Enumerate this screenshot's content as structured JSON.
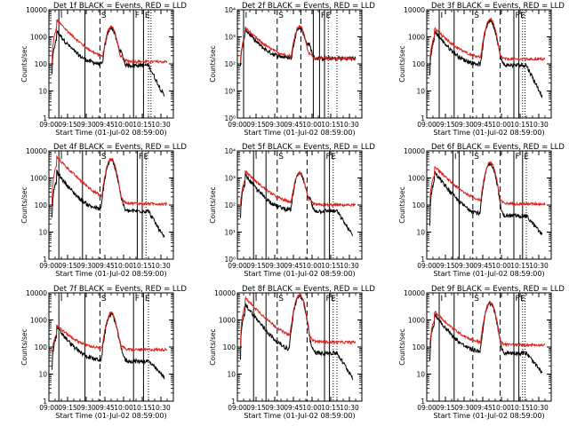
{
  "chart_data": {
    "type": "line",
    "layout": "3x3 grid",
    "colors": {
      "events": "#000000",
      "lld": "#e0201a",
      "marker_line": "#000000",
      "background": "#ffffff"
    },
    "x_axis": {
      "label": "Start Time (01-Jul-02 08:59:00)",
      "tick_labels": [
        "09:00",
        "09:15",
        "09:30",
        "09:45",
        "10:00",
        "10:15",
        "10:30"
      ],
      "tick_minutes": [
        0,
        15,
        30,
        45,
        60,
        75,
        90
      ],
      "range_minutes": [
        0,
        100
      ]
    },
    "y_axis": {
      "label": "Counts/sec",
      "scale": "log",
      "range": [
        1,
        10000
      ],
      "tick_labels_plain": [
        "1",
        "10",
        "100",
        "1000",
        "10000"
      ],
      "tick_labels_exp": [
        "10⁰",
        "10¹",
        "10²",
        "10³",
        "10⁴"
      ]
    },
    "annotations": [
      "I",
      "S",
      "F",
      "E"
    ],
    "panels": [
      {
        "title": "Det 1f  BLACK = Events, RED = LLD",
        "tick_style": "plain",
        "solid_markers_min": [
          8,
          29,
          68,
          76
        ],
        "dashed_markers_min": [
          41
        ],
        "dotted_markers_min": [
          80,
          82
        ],
        "labels_at_min": [
          8,
          41,
          68,
          76
        ],
        "red_series": {
          "baseline": 120,
          "peak": 2400,
          "peak_min": 50,
          "early_max": 3800
        },
        "black_series": {
          "baseline": 90,
          "end_value": 4,
          "early_max": 1500
        }
      },
      {
        "title": "Det 2f  BLACK = Events, RED = LLD",
        "tick_style": "exp",
        "solid_markers_min": [
          5,
          61,
          66,
          70
        ],
        "dashed_markers_min": [
          32,
          51
        ],
        "dotted_markers_min": [
          73,
          80
        ],
        "labels_at_min": [
          5,
          32,
          66,
          70
        ],
        "red_series": {
          "baseline": 160,
          "peak": 2500,
          "peak_min": 50,
          "early_max": 2000
        },
        "black_series": {
          "baseline": 160,
          "end_value": 160,
          "early_max": 1800
        }
      },
      {
        "title": "Det 3f  BLACK = Events, RED = LLD",
        "tick_style": "plain",
        "solid_markers_min": [
          10,
          22,
          70,
          74
        ],
        "dashed_markers_min": [
          37,
          59
        ],
        "dotted_markers_min": [
          77,
          79
        ],
        "labels_at_min": [
          10,
          37,
          70,
          74
        ],
        "red_series": {
          "baseline": 150,
          "peak": 4500,
          "peak_min": 51,
          "early_max": 1900
        },
        "black_series": {
          "baseline": 90,
          "end_value": 4,
          "early_max": 1500
        }
      },
      {
        "title": "Det 4f  BLACK = Events, RED = LLD",
        "tick_style": "plain",
        "solid_markers_min": [
          8,
          27,
          71,
          75
        ],
        "dashed_markers_min": [
          41
        ],
        "dotted_markers_min": [
          78
        ],
        "labels_at_min": [
          8,
          41,
          71,
          75
        ],
        "red_series": {
          "baseline": 110,
          "peak": 5000,
          "peak_min": 50,
          "early_max": 5500
        },
        "black_series": {
          "baseline": 60,
          "end_value": 4,
          "early_max": 1500
        }
      },
      {
        "title": "Det 5f  BLACK = Events, RED = LLD",
        "tick_style": "exp",
        "solid_markers_min": [
          13,
          23,
          70,
          74
        ],
        "dashed_markers_min": [
          32,
          56
        ],
        "dotted_markers_min": [
          77
        ],
        "labels_at_min": [
          13,
          32,
          70,
          74
        ],
        "red_series": {
          "baseline": 100,
          "peak": 1600,
          "peak_min": 50,
          "early_max": 1700
        },
        "black_series": {
          "baseline": 60,
          "end_value": 5,
          "early_max": 1200
        }
      },
      {
        "title": "Det 6f  BLACK = Events, RED = LLD",
        "tick_style": "plain",
        "solid_markers_min": [
          21,
          26,
          70,
          77
        ],
        "dashed_markers_min": [
          37,
          59
        ],
        "dotted_markers_min": [
          80
        ],
        "labels_at_min": [
          21,
          37,
          70,
          77
        ],
        "red_series": {
          "baseline": 110,
          "peak": 3800,
          "peak_min": 51,
          "early_max": 2500
        },
        "black_series": {
          "baseline": 40,
          "end_value": 6,
          "early_max": 1500
        }
      },
      {
        "title": "Det 7f  BLACK = Events, RED = LLD",
        "tick_style": "plain",
        "solid_markers_min": [
          8,
          29,
          68,
          76
        ],
        "dashed_markers_min": [
          41
        ],
        "dotted_markers_min": [
          80
        ],
        "labels_at_min": [
          8,
          41,
          68,
          76
        ],
        "red_series": {
          "baseline": 80,
          "peak": 1800,
          "peak_min": 50,
          "early_max": 600
        },
        "black_series": {
          "baseline": 30,
          "end_value": 6,
          "early_max": 500
        }
      },
      {
        "title": "Det 8f  BLACK = Events, RED = LLD",
        "tick_style": "plain",
        "solid_markers_min": [
          13,
          23,
          70,
          74
        ],
        "dashed_markers_min": [
          32,
          56
        ],
        "dotted_markers_min": [
          77,
          80
        ],
        "labels_at_min": [
          13,
          32,
          70,
          74
        ],
        "red_series": {
          "baseline": 150,
          "peak": 8500,
          "peak_min": 50,
          "early_max": 6000
        },
        "black_series": {
          "baseline": 60,
          "end_value": 5,
          "early_max": 3500
        }
      },
      {
        "title": "Det 9f  BLACK = Events, RED = LLD",
        "tick_style": "plain",
        "solid_markers_min": [
          10,
          22,
          70,
          74
        ],
        "dashed_markers_min": [
          37,
          59
        ],
        "dotted_markers_min": [
          77,
          79
        ],
        "labels_at_min": [
          10,
          37,
          70,
          74
        ],
        "red_series": {
          "baseline": 120,
          "peak": 4500,
          "peak_min": 51,
          "early_max": 1900
        },
        "black_series": {
          "baseline": 60,
          "end_value": 8,
          "early_max": 1500
        }
      }
    ]
  }
}
